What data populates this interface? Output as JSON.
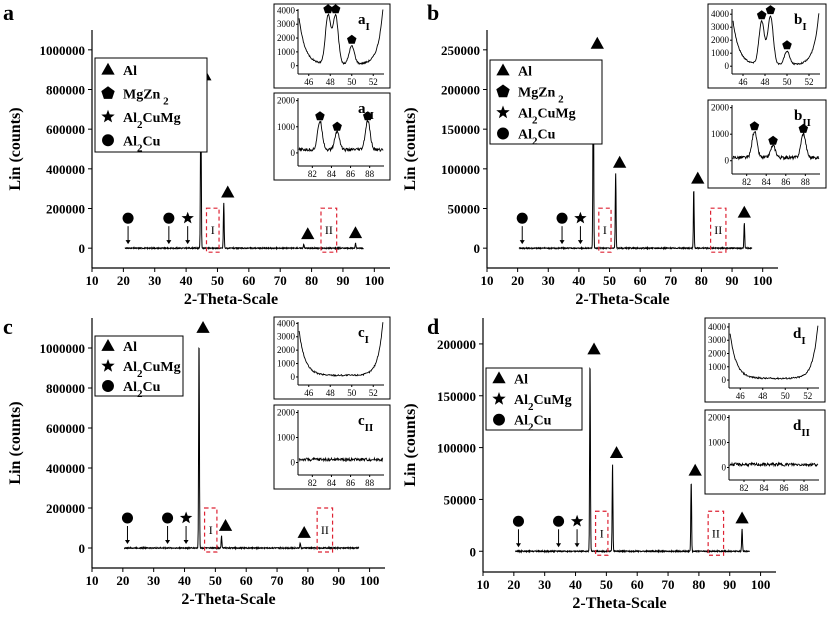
{
  "panels": [
    {
      "letter": "a",
      "ylabel": "Lin (counts)",
      "xlabel": "2-Theta-Scale",
      "xticks": [
        "10",
        "20",
        "30",
        "40",
        "50",
        "60",
        "70",
        "80",
        "90",
        "100"
      ],
      "yticks": [
        "0",
        "200000",
        "400000",
        "600000",
        "800000",
        "1000000"
      ],
      "legend": [
        "Al",
        "MgZn 2",
        "Al2CuMg",
        "Al2Cu"
      ],
      "box_labels": [
        "I",
        "II"
      ],
      "inset1": {
        "label": "aI",
        "yticks": [
          "0",
          "1000",
          "2000",
          "3000",
          "4000"
        ],
        "xticks": [
          "46",
          "48",
          "50",
          "52"
        ]
      },
      "inset2": {
        "label": "aII",
        "yticks": [
          "0",
          "1000",
          "2000"
        ],
        "xticks": [
          "82",
          "84",
          "86",
          "88"
        ]
      }
    },
    {
      "letter": "b",
      "ylabel": "Lin (counts)",
      "xlabel": "2-Theta-Scale",
      "xticks": [
        "10",
        "20",
        "30",
        "40",
        "50",
        "60",
        "70",
        "80",
        "90",
        "100"
      ],
      "yticks": [
        "0",
        "50000",
        "100000",
        "150000",
        "200000",
        "250000"
      ],
      "legend": [
        "Al",
        "MgZn 2",
        "Al2CuMg",
        "Al2Cu"
      ],
      "box_labels": [
        "I",
        "II"
      ],
      "inset1": {
        "label": "bI",
        "yticks": [
          "0",
          "1000",
          "2000",
          "3000",
          "4000"
        ],
        "xticks": [
          "46",
          "48",
          "50",
          "52"
        ]
      },
      "inset2": {
        "label": "bII",
        "yticks": [
          "0",
          "1000",
          "2000"
        ],
        "xticks": [
          "82",
          "84",
          "86",
          "88"
        ]
      }
    },
    {
      "letter": "c",
      "ylabel": "Lin (counts)",
      "xlabel": "2-Theta-Scale",
      "xticks": [
        "10",
        "20",
        "30",
        "40",
        "50",
        "60",
        "70",
        "80",
        "90",
        "100"
      ],
      "yticks": [
        "0",
        "200000",
        "400000",
        "600000",
        "800000",
        "1000000"
      ],
      "legend": [
        "Al",
        "Al2CuMg",
        "Al2Cu"
      ],
      "box_labels": [
        "I",
        "II"
      ],
      "inset1": {
        "label": "cI",
        "yticks": [
          "0",
          "1000",
          "2000",
          "3000",
          "4000"
        ],
        "xticks": [
          "46",
          "48",
          "50",
          "52"
        ]
      },
      "inset2": {
        "label": "cII",
        "yticks": [
          "0",
          "1000",
          "2000"
        ],
        "xticks": [
          "82",
          "84",
          "86",
          "88"
        ]
      }
    },
    {
      "letter": "d",
      "ylabel": "Lin (counts)",
      "xlabel": "2-Theta-Scale",
      "xticks": [
        "10",
        "20",
        "30",
        "40",
        "50",
        "60",
        "70",
        "80",
        "90",
        "100"
      ],
      "yticks": [
        "0",
        "50000",
        "100000",
        "150000",
        "200000"
      ],
      "legend": [
        "Al",
        "Al2CuMg",
        "Al2Cu"
      ],
      "box_labels": [
        "I",
        "II"
      ],
      "inset1": {
        "label": "dI",
        "yticks": [
          "0",
          "1000",
          "2000",
          "3000",
          "4000"
        ],
        "xticks": [
          "46",
          "48",
          "50",
          "52"
        ]
      },
      "inset2": {
        "label": "dII",
        "yticks": [
          "0",
          "1000",
          "2000"
        ],
        "xticks": [
          "82",
          "84",
          "86",
          "88"
        ]
      }
    }
  ],
  "chart_data": [
    {
      "type": "line",
      "panel": "a",
      "xlabel": "2-Theta-Scale",
      "ylabel": "Lin (counts)",
      "xlim": [
        10,
        105
      ],
      "ylim": [
        -100000,
        1100000
      ],
      "peaks": [
        {
          "x": 44.7,
          "y": 820000,
          "phase": "Al"
        },
        {
          "x": 52.0,
          "y": 230000,
          "phase": "Al"
        },
        {
          "x": 77.5,
          "y": 20000,
          "phase": "Al"
        },
        {
          "x": 94.0,
          "y": 25000,
          "phase": "Al"
        }
      ],
      "phase_markers": [
        {
          "x": 21.5,
          "phase": "Al2Cu"
        },
        {
          "x": 34.5,
          "phase": "Al2Cu"
        },
        {
          "x": 40.5,
          "phase": "Al2CuMg"
        }
      ],
      "inset1": {
        "xlim": [
          45,
          53
        ],
        "ylim": [
          -600,
          4100
        ],
        "peaks": [
          {
            "x": 47.8,
            "y": 3500,
            "phase": "MgZn2"
          },
          {
            "x": 48.5,
            "y": 3500,
            "phase": "MgZn2"
          },
          {
            "x": 50.0,
            "y": 1300,
            "phase": "MgZn2"
          }
        ]
      },
      "inset2": {
        "xlim": [
          80.5,
          89.5
        ],
        "ylim": [
          -500,
          2100
        ],
        "peaks": [
          {
            "x": 82.8,
            "y": 1100,
            "phase": "MgZn2"
          },
          {
            "x": 84.6,
            "y": 700,
            "phase": "MgZn2"
          },
          {
            "x": 87.8,
            "y": 1100,
            "phase": "MgZn2"
          }
        ]
      }
    },
    {
      "type": "line",
      "panel": "b",
      "xlabel": "2-Theta-Scale",
      "ylabel": "Lin (counts)",
      "xlim": [
        10,
        105
      ],
      "ylim": [
        -25000,
        275000
      ],
      "peaks": [
        {
          "x": 44.7,
          "y": 245000,
          "phase": "Al"
        },
        {
          "x": 52.0,
          "y": 95000,
          "phase": "Al"
        },
        {
          "x": 77.5,
          "y": 75000,
          "phase": "Al"
        },
        {
          "x": 94.0,
          "y": 32000,
          "phase": "Al"
        }
      ],
      "phase_markers": [
        {
          "x": 21.5,
          "phase": "Al2Cu"
        },
        {
          "x": 34.5,
          "phase": "Al2Cu"
        },
        {
          "x": 40.5,
          "phase": "Al2CuMg"
        }
      ],
      "inset1": {
        "xlim": [
          45,
          53
        ],
        "ylim": [
          -600,
          4400
        ],
        "peaks": [
          {
            "x": 47.7,
            "y": 3300,
            "phase": "MgZn2"
          },
          {
            "x": 48.5,
            "y": 3700,
            "phase": "MgZn2"
          },
          {
            "x": 50.0,
            "y": 1000,
            "phase": "MgZn2"
          }
        ]
      },
      "inset2": {
        "xlim": [
          80.5,
          89.5
        ],
        "ylim": [
          -500,
          2100
        ],
        "peaks": [
          {
            "x": 82.8,
            "y": 1000,
            "phase": "MgZn2"
          },
          {
            "x": 84.7,
            "y": 450,
            "phase": "MgZn2"
          },
          {
            "x": 87.8,
            "y": 900,
            "phase": "MgZn2"
          }
        ]
      }
    },
    {
      "type": "line",
      "panel": "c",
      "xlabel": "2-Theta-Scale",
      "ylabel": "Lin (counts)",
      "xlim": [
        10,
        105
      ],
      "ylim": [
        -100000,
        1150000
      ],
      "peaks": [
        {
          "x": 44.7,
          "y": 1050000,
          "phase": "Al"
        },
        {
          "x": 52.0,
          "y": 60000,
          "phase": "Al"
        },
        {
          "x": 77.5,
          "y": 25000,
          "phase": "Al"
        }
      ],
      "phase_markers": [
        {
          "x": 21.5,
          "phase": "Al2Cu"
        },
        {
          "x": 34.5,
          "phase": "Al2Cu"
        },
        {
          "x": 40.5,
          "phase": "Al2CuMg"
        }
      ],
      "inset1": {
        "xlim": [
          45,
          53
        ],
        "ylim": [
          -600,
          4100
        ],
        "peaks": []
      },
      "inset2": {
        "xlim": [
          80.5,
          89.5
        ],
        "ylim": [
          -500,
          2100
        ],
        "peaks": []
      }
    },
    {
      "type": "line",
      "panel": "d",
      "xlabel": "2-Theta-Scale",
      "ylabel": "Lin (counts)",
      "xlim": [
        10,
        105
      ],
      "ylim": [
        -20000,
        225000
      ],
      "peaks": [
        {
          "x": 44.7,
          "y": 185000,
          "phase": "Al"
        },
        {
          "x": 52.0,
          "y": 85000,
          "phase": "Al"
        },
        {
          "x": 77.5,
          "y": 68000,
          "phase": "Al"
        },
        {
          "x": 94.0,
          "y": 22000,
          "phase": "Al"
        }
      ],
      "phase_markers": [
        {
          "x": 21.5,
          "phase": "Al2Cu"
        },
        {
          "x": 34.5,
          "phase": "Al2Cu"
        },
        {
          "x": 40.5,
          "phase": "Al2CuMg"
        }
      ],
      "inset1": {
        "xlim": [
          45,
          53
        ],
        "ylim": [
          -600,
          4300
        ],
        "peaks": []
      },
      "inset2": {
        "xlim": [
          80.5,
          89.5
        ],
        "ylim": [
          -500,
          2100
        ],
        "peaks": []
      }
    }
  ]
}
